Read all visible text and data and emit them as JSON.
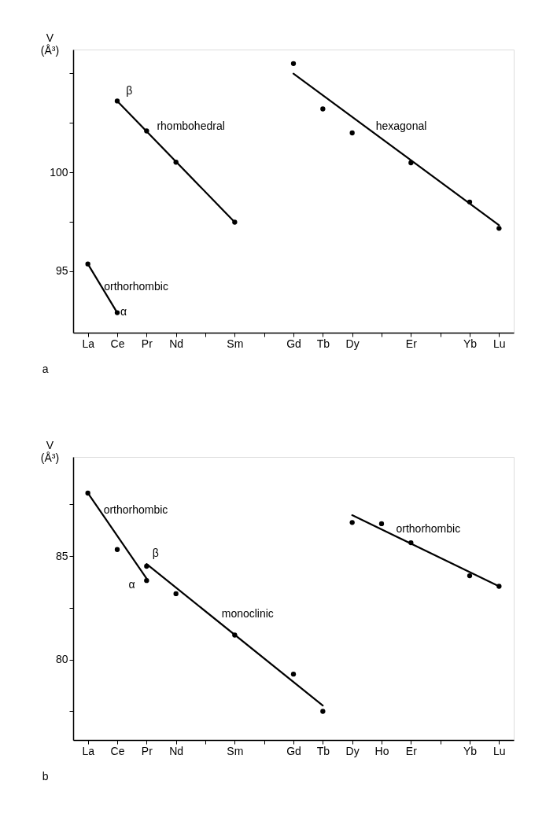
{
  "chart_data": [
    {
      "type": "scatter",
      "ylabel": "V (Å³)",
      "categories": [
        "La",
        "Ce",
        "Pr",
        "Nd",
        null,
        "Sm",
        null,
        "Gd",
        "Tb",
        "Dy",
        null,
        "Er",
        null,
        "Yb",
        "Lu"
      ],
      "ylim": [
        91.9,
        106.2
      ],
      "yticks": [
        95,
        {
          "value": 97.5,
          "label": null
        },
        100,
        {
          "value": 102.5,
          "label": null
        },
        {
          "value": 105,
          "label": null
        }
      ],
      "grid": false,
      "marker": "circle",
      "series": [
        {
          "color": "#000000",
          "values": [
            95.37,
            103.6,
            102.09,
            100.51,
            null,
            97.48,
            null,
            105.49,
            103.2,
            101.99,
            null,
            100.48,
            null,
            98.5,
            97.17
          ]
        },
        {
          "color": "#000000",
          "values": [
            null,
            92.91,
            null,
            null,
            null,
            null,
            null,
            null,
            null,
            null,
            null,
            null,
            null,
            null,
            null
          ]
        },
        {
          "type": "line",
          "marker": "none",
          "line_style": "solid",
          "color": "#000000",
          "values": [
            95.37,
            92.91,
            null,
            null,
            null,
            null,
            null,
            null,
            null,
            null,
            null,
            null,
            null,
            null,
            null
          ]
        },
        {
          "type": "line",
          "marker": "none",
          "line_style": "solid",
          "color": "#000000",
          "values": [
            null,
            103.6,
            null,
            null,
            null,
            97.48,
            null,
            null,
            null,
            null,
            null,
            null,
            null,
            null,
            null
          ]
        },
        {
          "type": "line",
          "marker": "none",
          "line_style": "solid",
          "color": "#000000",
          "values": [
            null,
            null,
            null,
            null,
            null,
            null,
            null,
            104.98,
            null,
            null,
            null,
            null,
            null,
            null,
            97.33
          ]
        }
      ],
      "annotations": [
        "β",
        "rhombohedral",
        "hexagonal",
        "orthorhombic",
        "α",
        "a"
      ]
    },
    {
      "type": "scatter",
      "ylabel": "V (Å³)",
      "categories": [
        "La",
        "Ce",
        "Pr",
        "Nd",
        null,
        "Sm",
        null,
        "Gd",
        "Tb",
        "Dy",
        "Ho",
        "Er",
        null,
        "Yb",
        "Lu"
      ],
      "ylim": [
        76.1,
        89.8
      ],
      "yticks": [
        {
          "value": 77.5,
          "label": null
        },
        80,
        {
          "value": 82.5,
          "label": null
        },
        85,
        {
          "value": 87.5,
          "label": null
        }
      ],
      "grid": false,
      "marker": "circle",
      "series": [
        {
          "color": "#000000",
          "values": [
            88.05,
            85.32,
            84.51,
            83.18,
            null,
            81.18,
            null,
            79.29,
            77.49,
            86.63,
            86.57,
            85.65,
            null,
            84.05,
            83.54
          ]
        },
        {
          "color": "#000000",
          "values": [
            null,
            null,
            83.82,
            null,
            null,
            null,
            null,
            null,
            null,
            null,
            null,
            null,
            null,
            null,
            null
          ]
        },
        {
          "type": "line",
          "marker": "none",
          "line_style": "solid",
          "color": "#000000",
          "values": [
            88.05,
            null,
            83.92,
            null,
            null,
            null,
            null,
            null,
            null,
            null,
            null,
            null,
            null,
            null,
            null
          ]
        },
        {
          "type": "line",
          "marker": "none",
          "line_style": "solid",
          "color": "#000000",
          "values": [
            null,
            null,
            84.62,
            null,
            null,
            null,
            null,
            null,
            77.77,
            null,
            null,
            null,
            null,
            null,
            null
          ]
        },
        {
          "type": "line",
          "marker": "none",
          "line_style": "solid",
          "color": "#000000",
          "values": [
            null,
            null,
            null,
            null,
            null,
            null,
            null,
            null,
            null,
            86.98,
            null,
            null,
            null,
            null,
            83.54
          ]
        }
      ],
      "annotations": [
        "orthorhombic",
        "β",
        "α",
        "monoclinic",
        "orthorhombic",
        "b"
      ]
    }
  ]
}
